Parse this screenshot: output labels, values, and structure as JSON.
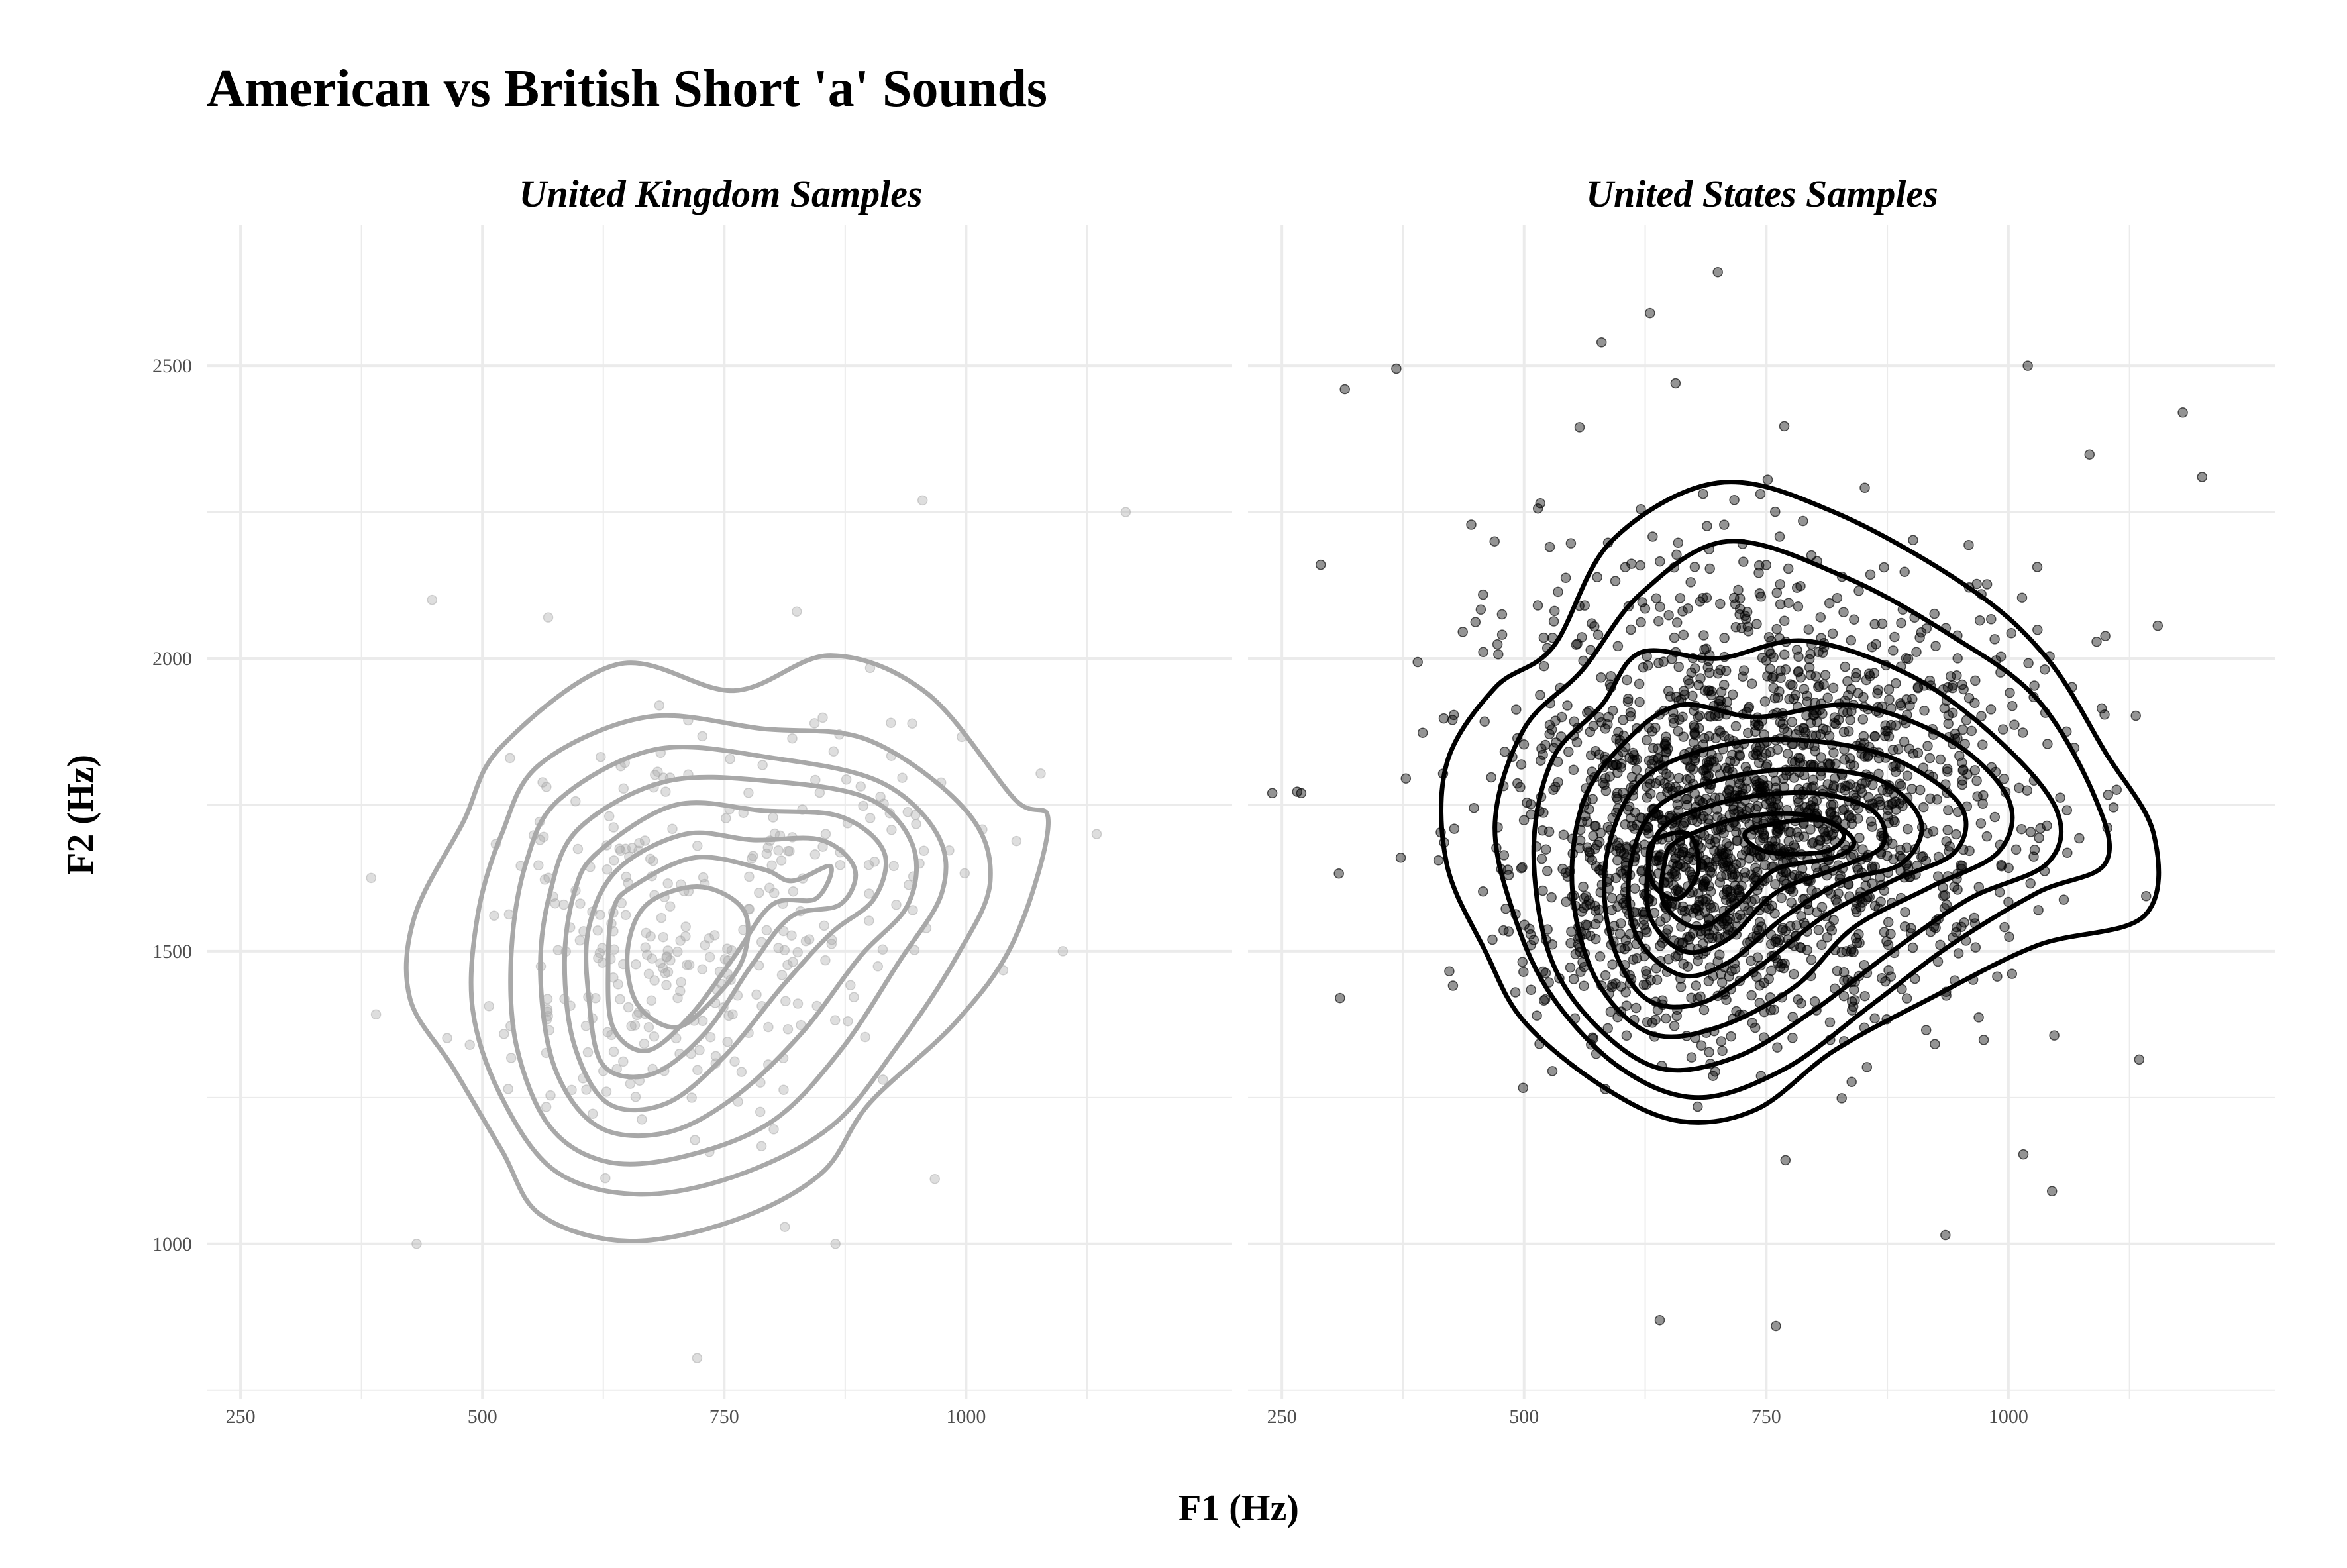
{
  "chart_data": {
    "type": "scatter",
    "title": "American vs British Short 'a' Sounds",
    "xlabel": "F1 (Hz)",
    "ylabel": "F2 (Hz)",
    "xlim": [
      215,
      1275
    ],
    "ylim": [
      735,
      2740
    ],
    "x_ticks": [
      250,
      500,
      750,
      1000
    ],
    "y_ticks": [
      1000,
      1500,
      2000,
      2500
    ],
    "grid": true,
    "legend": "none",
    "colors": {
      "uk": "#a8a8a8",
      "us": "#000000",
      "grid": "#ebebeb"
    },
    "panels": [
      {
        "name": "United Kingdom Samples",
        "n_points": 330,
        "density_centers": [
          {
            "x": 680,
            "y": 1530,
            "sx": 80,
            "sy": 160,
            "w": 0.55
          },
          {
            "x": 860,
            "y": 1660,
            "sx": 70,
            "sy": 110,
            "w": 0.25
          },
          {
            "x": 750,
            "y": 1380,
            "sx": 90,
            "sy": 120,
            "w": 0.2
          }
        ],
        "outliers": [
          [
            448,
            2100
          ],
          [
            568,
            2070
          ],
          [
            955,
            2270
          ],
          [
            1165,
            2250
          ],
          [
            385,
            1625
          ],
          [
            432,
            1000
          ],
          [
            722,
            805
          ],
          [
            1135,
            1700
          ],
          [
            1100,
            1500
          ],
          [
            487,
            1340
          ],
          [
            865,
            1000
          ],
          [
            825,
            2080
          ]
        ],
        "contours": [
          [
            [
              520,
              1850
            ],
            [
              640,
              1990
            ],
            [
              760,
              1945
            ],
            [
              860,
              2005
            ],
            [
              960,
              1940
            ],
            [
              1050,
              1760
            ],
            [
              1085,
              1720
            ],
            [
              1050,
              1520
            ],
            [
              990,
              1380
            ],
            [
              900,
              1240
            ],
            [
              850,
              1120
            ],
            [
              760,
              1040
            ],
            [
              650,
              1005
            ],
            [
              560,
              1050
            ],
            [
              520,
              1160
            ],
            [
              470,
              1300
            ],
            [
              425,
              1420
            ],
            [
              430,
              1560
            ],
            [
              480,
              1720
            ]
          ],
          [
            [
              560,
              1820
            ],
            [
              670,
              1900
            ],
            [
              790,
              1880
            ],
            [
              900,
              1860
            ],
            [
              1000,
              1740
            ],
            [
              1025,
              1620
            ],
            [
              990,
              1490
            ],
            [
              930,
              1340
            ],
            [
              860,
              1200
            ],
            [
              760,
              1115
            ],
            [
              660,
              1085
            ],
            [
              575,
              1125
            ],
            [
              520,
              1250
            ],
            [
              490,
              1400
            ],
            [
              495,
              1560
            ],
            [
              520,
              1700
            ]
          ],
          [
            [
              580,
              1760
            ],
            [
              680,
              1845
            ],
            [
              800,
              1830
            ],
            [
              910,
              1790
            ],
            [
              970,
              1700
            ],
            [
              975,
              1600
            ],
            [
              930,
              1480
            ],
            [
              870,
              1330
            ],
            [
              800,
              1210
            ],
            [
              710,
              1150
            ],
            [
              630,
              1140
            ],
            [
              570,
              1200
            ],
            [
              535,
              1340
            ],
            [
              530,
              1500
            ],
            [
              545,
              1650
            ]
          ],
          [
            [
              600,
              1710
            ],
            [
              690,
              1790
            ],
            [
              800,
              1790
            ],
            [
              900,
              1760
            ],
            [
              945,
              1680
            ],
            [
              940,
              1580
            ],
            [
              890,
              1490
            ],
            [
              830,
              1360
            ],
            [
              760,
              1250
            ],
            [
              690,
              1190
            ],
            [
              620,
              1200
            ],
            [
              575,
              1300
            ],
            [
              560,
              1460
            ],
            [
              570,
              1600
            ]
          ],
          [
            [
              620,
              1670
            ],
            [
              700,
              1750
            ],
            [
              790,
              1740
            ],
            [
              870,
              1730
            ],
            [
              915,
              1670
            ],
            [
              905,
              1590
            ],
            [
              860,
              1530
            ],
            [
              810,
              1440
            ],
            [
              750,
              1320
            ],
            [
              690,
              1240
            ],
            [
              630,
              1240
            ],
            [
              595,
              1340
            ],
            [
              585,
              1480
            ],
            [
              595,
              1600
            ]
          ],
          [
            [
              640,
              1640
            ],
            [
              710,
              1700
            ],
            [
              780,
              1690
            ],
            [
              850,
              1690
            ],
            [
              885,
              1640
            ],
            [
              870,
              1580
            ],
            [
              820,
              1560
            ],
            [
              780,
              1480
            ],
            [
              730,
              1360
            ],
            [
              675,
              1290
            ],
            [
              625,
              1305
            ],
            [
              610,
              1420
            ],
            [
              610,
              1540
            ]
          ],
          [
            [
              655,
              1610
            ],
            [
              720,
              1660
            ],
            [
              790,
              1640
            ],
            [
              820,
              1620
            ],
            [
              860,
              1645
            ],
            [
              845,
              1590
            ],
            [
              800,
              1580
            ],
            [
              760,
              1490
            ],
            [
              715,
              1390
            ],
            [
              670,
              1330
            ],
            [
              635,
              1370
            ],
            [
              630,
              1480
            ],
            [
              635,
              1570
            ]
          ],
          [
            [
              670,
              1580
            ],
            [
              725,
              1610
            ],
            [
              770,
              1570
            ],
            [
              770,
              1490
            ],
            [
              740,
              1420
            ],
            [
              700,
              1370
            ],
            [
              660,
              1410
            ],
            [
              650,
              1500
            ]
          ]
        ]
      },
      {
        "name": "United States Samples",
        "n_points": 2100,
        "density_centers": [
          {
            "x": 660,
            "y": 1640,
            "sx": 85,
            "sy": 150,
            "w": 0.38
          },
          {
            "x": 800,
            "y": 1720,
            "sx": 110,
            "sy": 170,
            "w": 0.37
          },
          {
            "x": 720,
            "y": 1880,
            "sx": 150,
            "sy": 190,
            "w": 0.25
          }
        ],
        "outliers": [
          [
            315,
            2460
          ],
          [
            630,
            2590
          ],
          [
            700,
            2660
          ],
          [
            1020,
            2500
          ],
          [
            1180,
            2420
          ],
          [
            1200,
            2310
          ],
          [
            240,
            1770
          ],
          [
            270,
            1770
          ],
          [
            310,
            1420
          ],
          [
            640,
            870
          ],
          [
            760,
            860
          ],
          [
            935,
            1015
          ],
          [
            1045,
            1090
          ],
          [
            1135,
            1315
          ],
          [
            580,
            2540
          ],
          [
            290,
            2160
          ]
        ],
        "contours": [
          [
            [
              530,
              2020
            ],
            [
              590,
              2200
            ],
            [
              700,
              2300
            ],
            [
              820,
              2250
            ],
            [
              960,
              2120
            ],
            [
              1040,
              2000
            ],
            [
              1100,
              1840
            ],
            [
              1150,
              1700
            ],
            [
              1140,
              1560
            ],
            [
              1030,
              1510
            ],
            [
              920,
              1420
            ],
            [
              820,
              1330
            ],
            [
              740,
              1230
            ],
            [
              660,
              1210
            ],
            [
              580,
              1270
            ],
            [
              500,
              1380
            ],
            [
              460,
              1500
            ],
            [
              420,
              1650
            ],
            [
              420,
              1820
            ],
            [
              470,
              1950
            ]
          ],
          [
            [
              560,
              1980
            ],
            [
              620,
              2110
            ],
            [
              710,
              2200
            ],
            [
              830,
              2140
            ],
            [
              940,
              2040
            ],
            [
              1030,
              1930
            ],
            [
              1090,
              1760
            ],
            [
              1100,
              1650
            ],
            [
              1030,
              1600
            ],
            [
              940,
              1510
            ],
            [
              860,
              1410
            ],
            [
              770,
              1300
            ],
            [
              680,
              1250
            ],
            [
              600,
              1300
            ],
            [
              530,
              1420
            ],
            [
              490,
              1560
            ],
            [
              470,
              1720
            ],
            [
              500,
              1880
            ]
          ],
          [
            [
              580,
              1920
            ],
            [
              620,
              2010
            ],
            [
              700,
              2000
            ],
            [
              790,
              2030
            ],
            [
              900,
              1970
            ],
            [
              990,
              1860
            ],
            [
              1050,
              1740
            ],
            [
              1040,
              1650
            ],
            [
              960,
              1590
            ],
            [
              880,
              1500
            ],
            [
              800,
              1400
            ],
            [
              720,
              1320
            ],
            [
              640,
              1300
            ],
            [
              570,
              1380
            ],
            [
              525,
              1500
            ],
            [
              510,
              1680
            ],
            [
              530,
              1830
            ]
          ],
          [
            [
              600,
              1850
            ],
            [
              660,
              1920
            ],
            [
              740,
              1900
            ],
            [
              840,
              1920
            ],
            [
              940,
              1860
            ],
            [
              1000,
              1760
            ],
            [
              990,
              1670
            ],
            [
              920,
              1610
            ],
            [
              840,
              1540
            ],
            [
              780,
              1440
            ],
            [
              700,
              1370
            ],
            [
              630,
              1360
            ],
            [
              575,
              1450
            ],
            [
              550,
              1600
            ],
            [
              560,
              1750
            ]
          ],
          [
            [
              620,
              1790
            ],
            [
              700,
              1850
            ],
            [
              790,
              1860
            ],
            [
              880,
              1830
            ],
            [
              950,
              1750
            ],
            [
              945,
              1670
            ],
            [
              880,
              1620
            ],
            [
              810,
              1560
            ],
            [
              740,
              1470
            ],
            [
              680,
              1410
            ],
            [
              625,
              1420
            ],
            [
              590,
              1520
            ],
            [
              585,
              1660
            ]
          ],
          [
            [
              640,
              1750
            ],
            [
              720,
              1800
            ],
            [
              800,
              1810
            ],
            [
              870,
              1790
            ],
            [
              910,
              1720
            ],
            [
              890,
              1650
            ],
            [
              830,
              1620
            ],
            [
              770,
              1560
            ],
            [
              710,
              1480
            ],
            [
              660,
              1460
            ],
            [
              615,
              1530
            ],
            [
              610,
              1650
            ]
          ],
          [
            [
              650,
              1720
            ],
            [
              720,
              1760
            ],
            [
              800,
              1770
            ],
            [
              860,
              1740
            ],
            [
              870,
              1680
            ],
            [
              820,
              1640
            ],
            [
              760,
              1600
            ],
            [
              710,
              1520
            ],
            [
              665,
              1500
            ],
            [
              630,
              1560
            ],
            [
              630,
              1660
            ]
          ],
          [
            [
              660,
              1690
            ],
            [
              730,
              1730
            ],
            [
              800,
              1730
            ],
            [
              840,
              1690
            ],
            [
              820,
              1660
            ],
            [
              760,
              1640
            ],
            [
              720,
              1580
            ],
            [
              680,
              1540
            ],
            [
              645,
              1580
            ],
            [
              645,
              1650
            ]
          ],
          [
            [
              730,
              1705
            ],
            [
              800,
              1725
            ],
            [
              830,
              1700
            ],
            [
              810,
              1670
            ],
            [
              750,
              1670
            ]
          ],
          [
            [
              635,
              1690
            ],
            [
              670,
              1700
            ],
            [
              680,
              1640
            ],
            [
              660,
              1590
            ],
            [
              635,
              1610
            ],
            [
              628,
              1655
            ]
          ]
        ]
      }
    ]
  }
}
